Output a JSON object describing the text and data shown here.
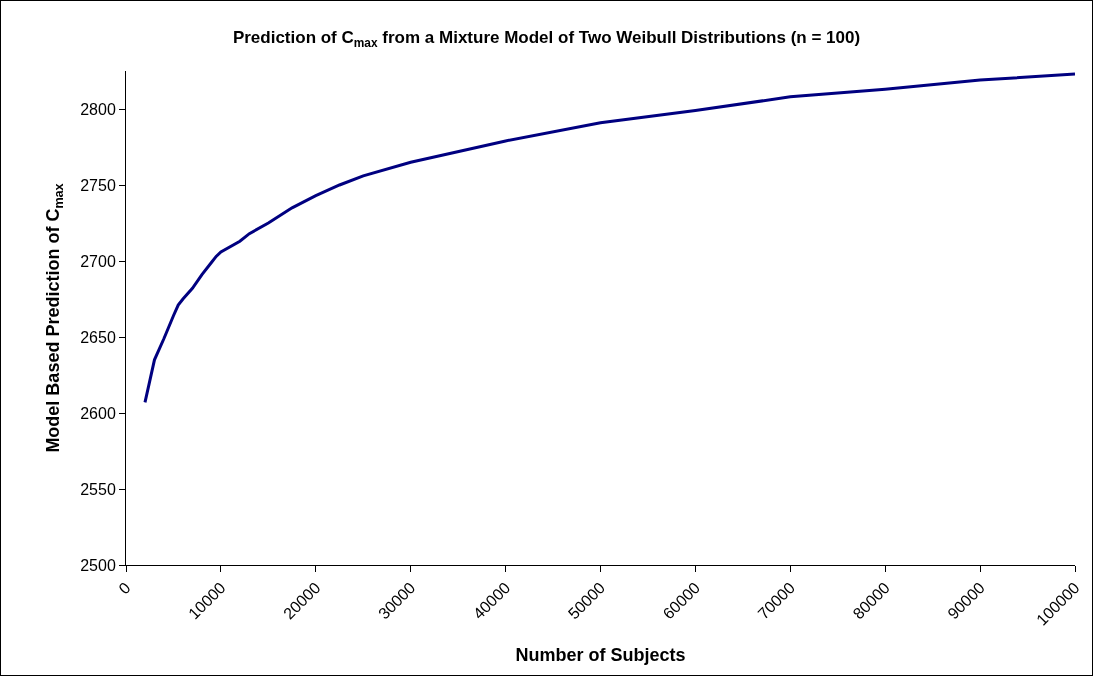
{
  "chart_data": {
    "type": "line",
    "title": "Prediction of C$_{max}$ from a Mixture Model of Two Weibull Distributions (n = 100)",
    "xlabel": "Number of Subjects",
    "ylabel": "Model Based Prediction of C$_{max}$",
    "x": [
      2000,
      2500,
      3000,
      4000,
      5000,
      5500,
      6000,
      7000,
      8000,
      9000,
      9500,
      10000,
      12000,
      13000,
      15000,
      17500,
      20000,
      22500,
      25000,
      30000,
      40000,
      50000,
      60000,
      70000,
      80000,
      90000,
      100000
    ],
    "series": [
      {
        "color": "#000080",
        "values": [
          2607,
          2621,
          2635,
          2649,
          2664,
          2671,
          2675,
          2682,
          2691,
          2699,
          2703,
          2706,
          2713,
          2718,
          2725,
          2735,
          2743,
          2750,
          2756,
          2765,
          2779,
          2791,
          2799,
          2808,
          2813,
          2819,
          2823
        ]
      }
    ],
    "xlim": [
      0,
      100000
    ],
    "xticks": [
      0,
      10000,
      20000,
      30000,
      40000,
      50000,
      60000,
      70000,
      80000,
      90000,
      100000
    ],
    "ylim": [
      2500,
      2825
    ],
    "yticks": [
      2500,
      2550,
      2600,
      2650,
      2700,
      2750,
      2800
    ],
    "grid": false,
    "marker": "none",
    "line_style": "solid"
  }
}
